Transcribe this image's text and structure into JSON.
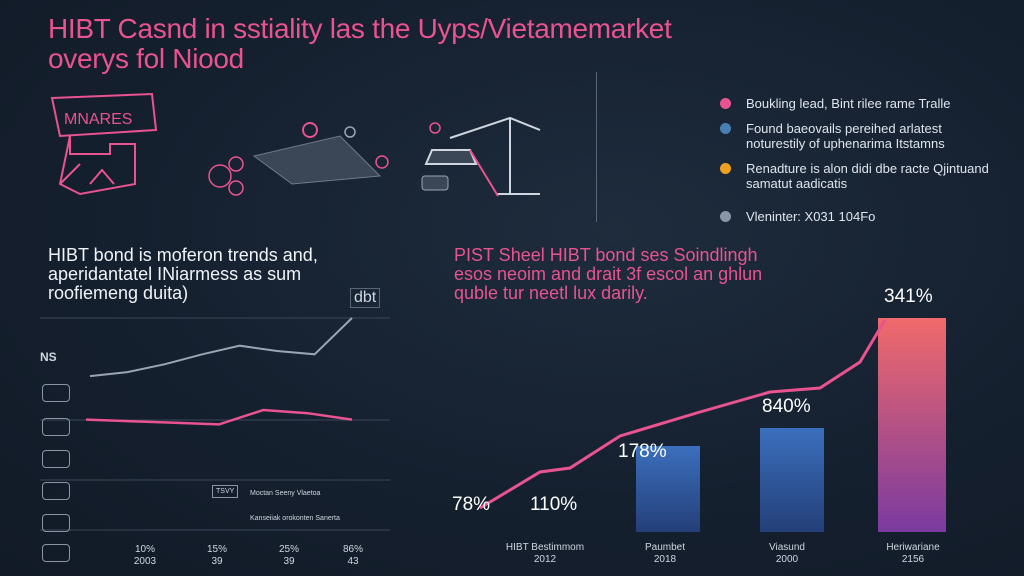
{
  "header": {
    "title_line1": "HIBT Casnd in sstiality las the Uyps/Vietamemarket",
    "title_line2": "overys fol Niood"
  },
  "illustration": {
    "sign_label": "MNARES"
  },
  "legend": {
    "items": [
      {
        "text": "Boukling lead, Bint rilee rame Tralle",
        "sub": "",
        "color": "#e9538f"
      },
      {
        "text": "Found baeovails pereihed arlatest",
        "sub": "noturestily of uphenarima Itstamns",
        "color": "#4a7fb5"
      },
      {
        "text": "Renadture is alon didi dbe racte Qjintuand",
        "sub": "samatut aadicatis",
        "color": "#f0a020"
      },
      {
        "text": "Vleninter: X031 104Fo",
        "sub": "",
        "color": "#8a96a8"
      }
    ]
  },
  "left_panel": {
    "caption_line1": "HIBT bond is moferon trends and,",
    "caption_line2": "aperidantatel INiarmess as sum",
    "caption_line3": "roofiemeng duita)",
    "corner_tag": "dbt",
    "side_label": "NS",
    "box_note_1": "Moctan Seeny Vlaetoa",
    "box_note_2": "Kanseiiak orokonten Sanerta",
    "box_tag": "TSVY",
    "ticks": [
      {
        "top": "10%",
        "bottom": "2003"
      },
      {
        "top": "15%",
        "bottom": "39"
      },
      {
        "top": "25%",
        "bottom": "39"
      },
      {
        "top": "86%",
        "bottom": "43"
      }
    ]
  },
  "right_panel": {
    "caption_line1": "PIST Sheel HIBT bond ses Soindlingh",
    "caption_line2": "esos neoim and drait 3f escol an ghlun",
    "caption_line3": "quble tur neetl lux darily."
  },
  "colors": {
    "accent_pink": "#e9538f",
    "bar_blue": "#2f5fa6",
    "bar_gradient_top": "#f06a6a",
    "bar_gradient_bottom": "#7a3aa0",
    "line_gray": "#9aa4b4"
  },
  "chart_data": [
    {
      "type": "bar",
      "title": "PIST Sheel HIBT bond ses Soindlingh",
      "categories": [
        "HIBT Bestimmom 2012",
        "Paumbet 2018",
        "Viasund 2000",
        "Heriwariane 2156"
      ],
      "x_labels": [
        {
          "line1": "HIBT Bestimmom",
          "line2": "2012"
        },
        {
          "line1": "Paumbet",
          "line2": "2018"
        },
        {
          "line1": "Viasund",
          "line2": "2000"
        },
        {
          "line1": "Heriwariane",
          "line2": "2156"
        }
      ],
      "values": [
        110,
        178,
        840,
        341
      ],
      "value_labels": [
        "110%",
        "178%",
        "840%",
        "341%"
      ],
      "extra_label": "78%",
      "line_series_y": [
        5,
        22,
        50,
        85,
        115,
        150,
        220
      ],
      "grid": false,
      "legend": "none"
    },
    {
      "type": "line",
      "title": "HIBT bond is moferon trends and,",
      "series": [
        {
          "values": [
            12,
            18,
            30,
            45,
            58,
            50,
            45,
            100
          ]
        },
        {
          "values": [
            48,
            47,
            46,
            45,
            54,
            52,
            48
          ]
        }
      ],
      "grid": true,
      "legend": "none"
    }
  ]
}
